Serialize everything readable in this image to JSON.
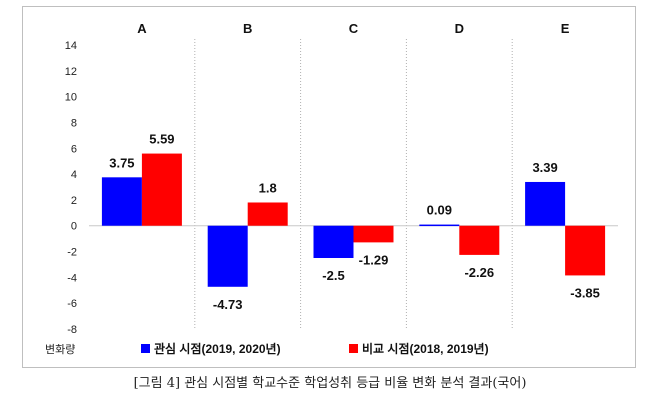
{
  "chart_data": {
    "type": "bar",
    "categories": [
      "A",
      "B",
      "C",
      "D",
      "E"
    ],
    "series": [
      {
        "name": "관심 시점(2019, 2020년)",
        "color": "#0000ff",
        "values": [
          3.75,
          -4.73,
          -2.5,
          0.09,
          3.39
        ]
      },
      {
        "name": "비교 시점(2018, 2019년)",
        "color": "#ff0000",
        "values": [
          5.59,
          1.8,
          -1.29,
          -2.26,
          -3.85
        ]
      }
    ],
    "yticks": [
      14,
      12,
      10,
      8,
      6,
      4,
      2,
      0,
      -2,
      -4,
      -6,
      -8
    ],
    "ylim": [
      -8,
      14
    ],
    "ylabel": "변화량",
    "legend": "bottom",
    "caption": "[그림 4] 관심 시점별 학교수준 학업성취 등급 비율 변화 분석 결과(국어)"
  }
}
